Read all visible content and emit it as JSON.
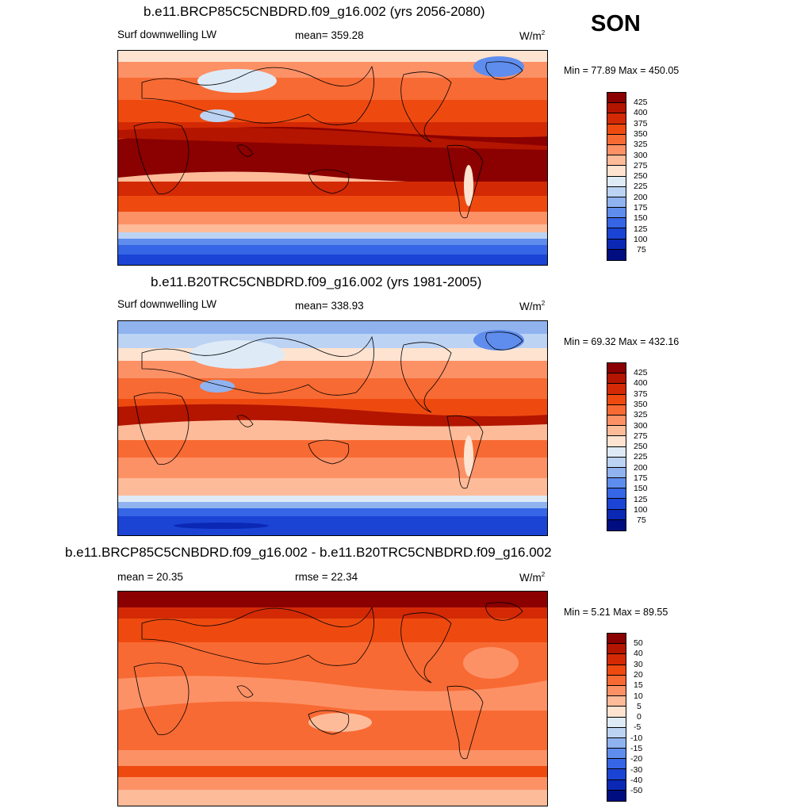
{
  "season": "SON",
  "panels": [
    {
      "title": "b.e11.BRCP85C5CNBDRD.f09_g16.002 (yrs 2056-2080)",
      "variable": "Surf downwelling LW",
      "stat": "mean= 359.28",
      "units": "W/m",
      "units_exp": "2",
      "minmax": "Min =  77.89 Max = 450.05",
      "colorbar_labels": [
        "425",
        "400",
        "375",
        "350",
        "325",
        "300",
        "275",
        "250",
        "225",
        "200",
        "175",
        "150",
        "125",
        "100",
        "75"
      ],
      "colorbar_colors": [
        "#8b0000",
        "#b31500",
        "#d32a05",
        "#ee4a10",
        "#f86a33",
        "#fd9166",
        "#fdbb99",
        "#fde3d0",
        "#deebf7",
        "#bcd3f3",
        "#90b3f0",
        "#5f8ded",
        "#3665e6",
        "#1b44d5",
        "#0b28b5",
        "#000d80"
      ]
    },
    {
      "title": "b.e11.B20TRC5CNBDRD.f09_g16.002 (yrs 1981-2005)",
      "variable": "Surf downwelling LW",
      "stat": "mean= 338.93",
      "units": "W/m",
      "units_exp": "2",
      "minmax": "Min =  69.32 Max = 432.16",
      "colorbar_labels": [
        "425",
        "400",
        "375",
        "350",
        "325",
        "300",
        "275",
        "250",
        "225",
        "200",
        "175",
        "150",
        "125",
        "100",
        "75"
      ],
      "colorbar_colors": [
        "#8b0000",
        "#b31500",
        "#d32a05",
        "#ee4a10",
        "#f86a33",
        "#fd9166",
        "#fdbb99",
        "#fde3d0",
        "#deebf7",
        "#bcd3f3",
        "#90b3f0",
        "#5f8ded",
        "#3665e6",
        "#1b44d5",
        "#0b28b5",
        "#000d80"
      ]
    },
    {
      "title": "b.e11.BRCP85C5CNBDRD.f09_g16.002 - b.e11.B20TRC5CNBDRD.f09_g16.002",
      "variable": "mean =  20.35",
      "stat": "rmse =  22.34",
      "units": "W/m",
      "units_exp": "2",
      "minmax": "Min =   5.21 Max =  89.55",
      "colorbar_labels": [
        "50",
        "40",
        "30",
        "20",
        "15",
        "10",
        "5",
        "0",
        "-5",
        "-10",
        "-15",
        "-20",
        "-30",
        "-40",
        "-50"
      ],
      "colorbar_colors": [
        "#8b0000",
        "#b31500",
        "#d32a05",
        "#ee4a10",
        "#f86a33",
        "#fd9166",
        "#fdbb99",
        "#fde3d0",
        "#deebf7",
        "#bcd3f3",
        "#90b3f0",
        "#5f8ded",
        "#3665e6",
        "#1b44d5",
        "#0b28b5",
        "#000d80"
      ]
    }
  ]
}
